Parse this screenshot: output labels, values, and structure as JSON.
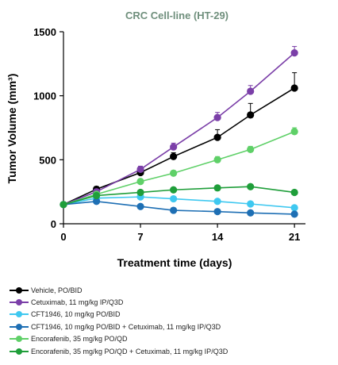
{
  "chart_data": {
    "type": "line",
    "title": "CRC Cell-line (HT-29)",
    "xlabel": "Treatment time (days)",
    "ylabel": "Tumor Volume (mm³)",
    "xlim": [
      0,
      22
    ],
    "ylim": [
      0,
      1500
    ],
    "xticks": [
      0,
      7,
      14,
      21
    ],
    "yticks": [
      0,
      500,
      1000,
      1500
    ],
    "x": [
      0,
      3,
      7,
      10,
      14,
      17,
      21
    ],
    "series": [
      {
        "name": "Vehicle,  PO/BID",
        "color": "#000000",
        "values": [
          150,
          270,
          400,
          525,
          675,
          850,
          1060
        ],
        "errors": [
          0,
          20,
          25,
          30,
          60,
          90,
          120
        ]
      },
      {
        "name": "Cetuximab, 11 mg/kg IP/Q3D",
        "color": "#7b3fa8",
        "values": [
          150,
          250,
          425,
          600,
          830,
          1035,
          1335
        ],
        "errors": [
          0,
          20,
          25,
          30,
          40,
          45,
          50
        ]
      },
      {
        "name": "CFT1946, 10 mg/kg PO/BID",
        "color": "#3fc8f0",
        "values": [
          150,
          200,
          210,
          195,
          175,
          155,
          125
        ],
        "errors": [
          0,
          10,
          10,
          10,
          10,
          10,
          10
        ]
      },
      {
        "name": "CFT1946, 10 mg/kg PO/BID + Cetuximab, 11 mg/kg IP/Q3D",
        "color": "#1e6fb4",
        "values": [
          150,
          175,
          135,
          105,
          95,
          85,
          75
        ],
        "errors": [
          0,
          10,
          10,
          10,
          8,
          8,
          8
        ]
      },
      {
        "name": "Encorafenib, 35 mg/kg PO/QD",
        "color": "#5fd068",
        "values": [
          150,
          230,
          330,
          395,
          500,
          580,
          720
        ],
        "errors": [
          0,
          15,
          20,
          20,
          25,
          25,
          30
        ]
      },
      {
        "name": "Encorafenib, 35 mg/kg PO/QD + Cetuximab, 11 mg/kg IP/Q3D",
        "color": "#1f9e3a",
        "values": [
          150,
          220,
          245,
          265,
          280,
          290,
          245
        ],
        "errors": [
          0,
          10,
          10,
          12,
          12,
          12,
          12
        ]
      }
    ],
    "grid": false,
    "legend_position": "bottom"
  }
}
